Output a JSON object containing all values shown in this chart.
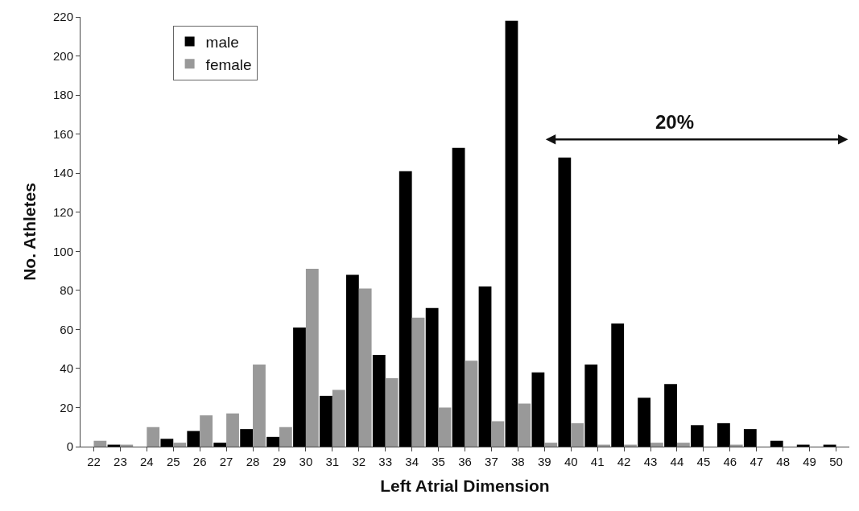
{
  "chart_data": {
    "type": "bar",
    "xlabel": "Left Atrial Dimension",
    "ylabel": "No. Athletes",
    "categories": [
      "22",
      "23",
      "24",
      "25",
      "26",
      "27",
      "28",
      "29",
      "30",
      "31",
      "32",
      "33",
      "34",
      "35",
      "36",
      "37",
      "38",
      "39",
      "40",
      "41",
      "42",
      "43",
      "44",
      "45",
      "46",
      "47",
      "48",
      "49",
      "50"
    ],
    "series": [
      {
        "name": "male",
        "color": "#000000",
        "values": [
          0,
          1,
          0,
          4,
          8,
          2,
          9,
          5,
          61,
          26,
          88,
          47,
          141,
          71,
          153,
          82,
          218,
          38,
          148,
          42,
          63,
          25,
          32,
          11,
          12,
          9,
          3,
          1,
          1
        ]
      },
      {
        "name": "female",
        "color": "#999999",
        "values": [
          3,
          1,
          10,
          2,
          16,
          17,
          42,
          10,
          91,
          29,
          81,
          35,
          66,
          20,
          44,
          13,
          22,
          2,
          12,
          1,
          1,
          2,
          2,
          0,
          1,
          0,
          0,
          0,
          0
        ]
      }
    ],
    "ylim": [
      0,
      220
    ],
    "yticks": [
      0,
      20,
      40,
      60,
      80,
      100,
      120,
      140,
      160,
      180,
      200,
      220
    ],
    "annotations": [
      "20%"
    ],
    "legend": "top left"
  }
}
